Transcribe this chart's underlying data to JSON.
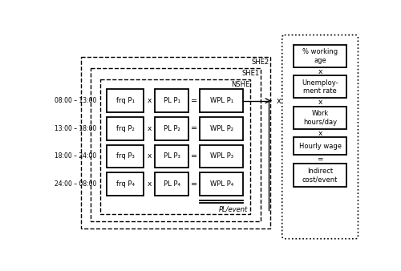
{
  "time_labels": [
    "08:00 – 13:00",
    "13:00 – 18:00",
    "18:00 – 24:00",
    "24:00 – 08:00"
  ],
  "frq_labels": [
    "frq P₁",
    "frq P₂",
    "frq P₃",
    "frq P₄"
  ],
  "pl_labels": [
    "PL P₁",
    "PL P₂",
    "PL P₃",
    "PL P₄"
  ],
  "wpl_labels": [
    "WPL P₁",
    "WPL P₂",
    "WPL P₃",
    "WPL P₄"
  ],
  "right_labels": [
    "% working\nage",
    "Unemploy-\nment rate",
    "Work\nhours/day",
    "Hourly wage"
  ],
  "bottom_right_label": "Indirect\ncost/event",
  "pl_event_label": "PL/event",
  "nshe_label": "NSHE",
  "she1_label": "SHE1",
  "she2_label": "SHE2",
  "bg_color": "white"
}
